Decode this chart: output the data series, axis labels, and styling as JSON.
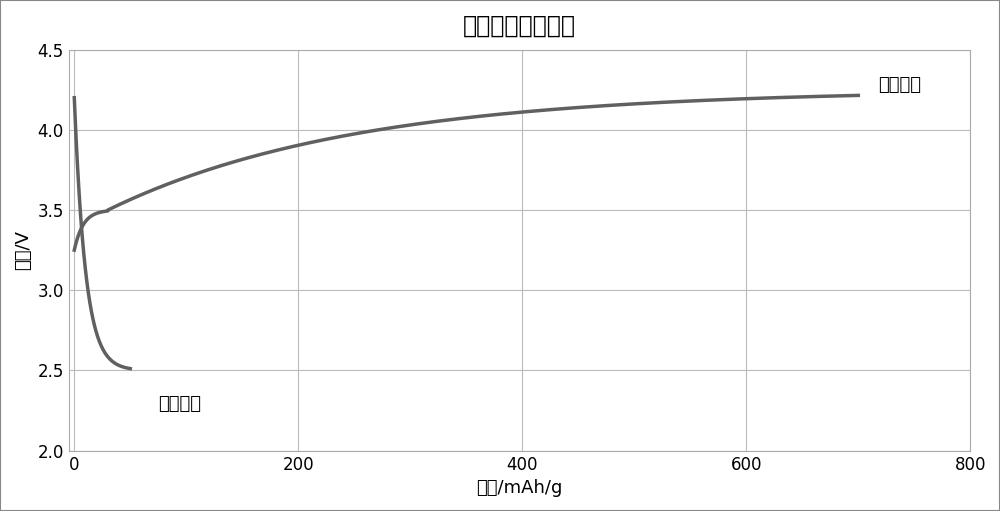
{
  "title": "首次充放电曲线图",
  "xlabel": "时间/mAh/g",
  "ylabel": "电压/V",
  "xlim": [
    -5,
    800
  ],
  "ylim": [
    2,
    4.5
  ],
  "xticks": [
    0,
    200,
    400,
    600,
    800
  ],
  "yticks": [
    2.0,
    2.5,
    3.0,
    3.5,
    4.0,
    4.5
  ],
  "title_fontsize": 17,
  "label_fontsize": 13,
  "tick_fontsize": 12,
  "line_color": "#606060",
  "line_width": 2.5,
  "annotation_discharge": "首次放电",
  "annotation_charge": "首次充电",
  "ann_discharge_x": 75,
  "ann_discharge_y": 2.35,
  "ann_charge_x": 718,
  "ann_charge_y": 4.28,
  "background_color": "#ffffff",
  "grid_color": "#bbbbbb",
  "border_color": "#aaaaaa"
}
